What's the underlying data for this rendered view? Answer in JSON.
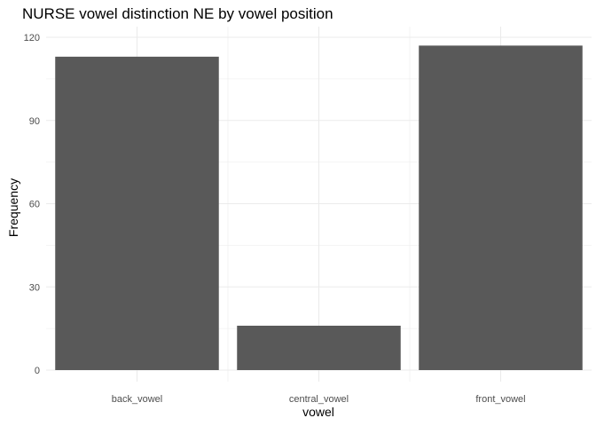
{
  "chart_data": {
    "type": "bar",
    "title": "NURSE vowel distinction NE by vowel position",
    "xlabel": "vowel",
    "ylabel": "Frequency",
    "categories": [
      "back_vowel",
      "central_vowel",
      "front_vowel"
    ],
    "values": [
      113,
      16,
      117
    ],
    "ylim": [
      0,
      120
    ],
    "yticks": [
      0,
      30,
      60,
      90,
      120
    ],
    "grid": true,
    "legend": "none",
    "bar_color": "#595959",
    "gridline_color": "#ebebeb"
  }
}
